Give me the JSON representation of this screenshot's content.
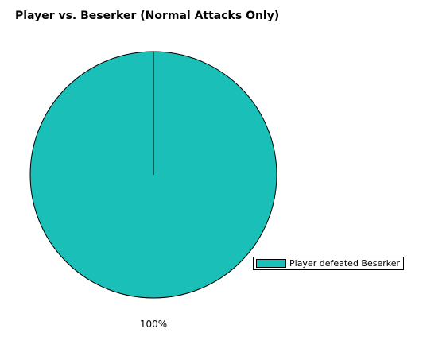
{
  "chart_data": {
    "type": "pie",
    "title": "Player vs. Beserker (Normal Attacks Only)",
    "slices": [
      {
        "name": "Player defeated Beserker",
        "value": 100,
        "label": "100%",
        "color": "#1abfb7"
      }
    ],
    "legend": {
      "position": "bottom-right"
    }
  }
}
